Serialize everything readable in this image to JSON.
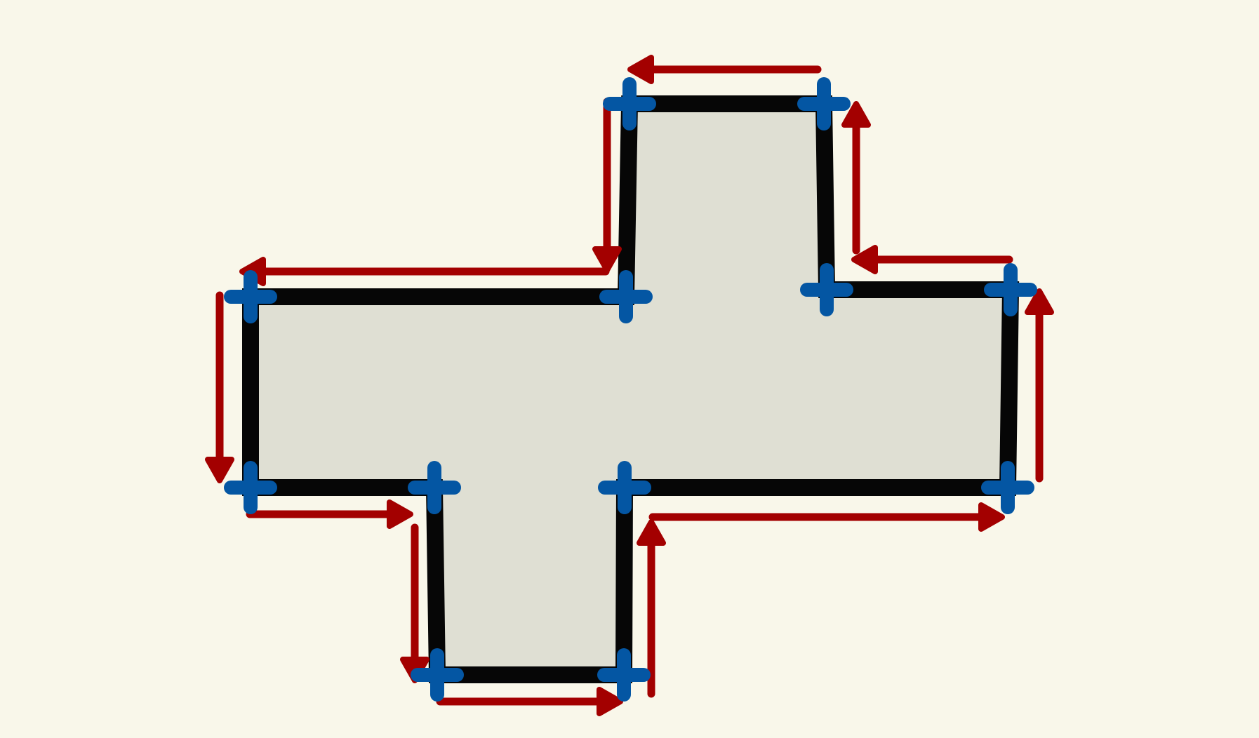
{
  "colors": {
    "background": "#f9f7ea",
    "shape_fill": "#dfdfd3",
    "outline": "#060606",
    "vertex_marker": "#0456a3",
    "traversal_arrow": "#a30000"
  },
  "icons": {
    "vertex_marker": "plus-icon",
    "arrow_head": "arrowhead-icon"
  },
  "shape": {
    "kind": "rectilinear-cross-polygon",
    "vertex_count": 12,
    "traversal_arrow_count": 12
  }
}
